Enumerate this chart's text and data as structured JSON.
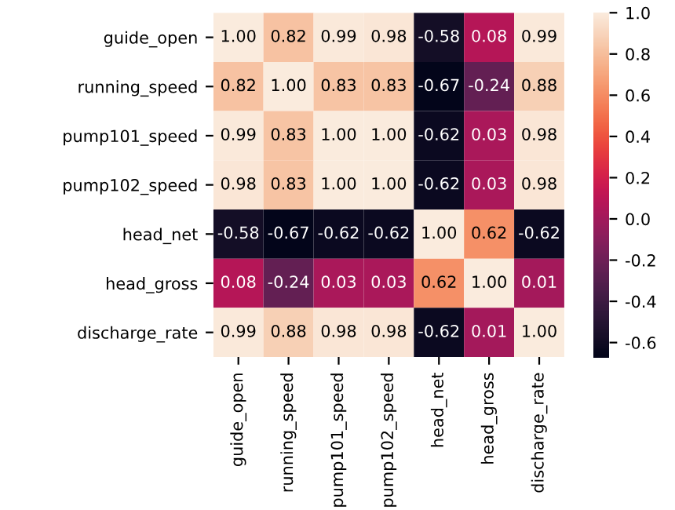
{
  "chart_data": {
    "type": "heatmap",
    "categories": [
      "guide_open",
      "running_speed",
      "pump101_speed",
      "pump102_speed",
      "head_net",
      "head_gross",
      "discharge_rate"
    ],
    "y_categories": [
      "guide_open",
      "running_speed",
      "pump101_speed",
      "pump102_speed",
      "head_net",
      "head_gross",
      "discharge_rate"
    ],
    "cells": [
      [
        1.0,
        0.82,
        0.99,
        0.98,
        -0.58,
        0.08,
        0.99
      ],
      [
        0.82,
        1.0,
        0.83,
        0.83,
        -0.67,
        -0.24,
        0.88
      ],
      [
        0.99,
        0.83,
        1.0,
        1.0,
        -0.62,
        0.03,
        0.98
      ],
      [
        0.98,
        0.83,
        1.0,
        1.0,
        -0.62,
        0.03,
        0.98
      ],
      [
        -0.58,
        -0.67,
        -0.62,
        -0.62,
        1.0,
        0.62,
        -0.62
      ],
      [
        0.08,
        -0.24,
        0.03,
        0.03,
        0.62,
        1.0,
        0.01
      ],
      [
        0.99,
        0.88,
        0.98,
        0.98,
        -0.62,
        0.01,
        1.0
      ]
    ],
    "cell_labels": [
      [
        "1.00",
        "0.82",
        "0.99",
        "0.98",
        "-0.58",
        "0.08",
        "0.99"
      ],
      [
        "0.82",
        "1.00",
        "0.83",
        "0.83",
        "-0.67",
        "-0.24",
        "0.88"
      ],
      [
        "0.99",
        "0.83",
        "1.00",
        "1.00",
        "-0.62",
        "0.03",
        "0.98"
      ],
      [
        "0.98",
        "0.83",
        "1.00",
        "1.00",
        "-0.62",
        "0.03",
        "0.98"
      ],
      [
        "-0.58",
        "-0.67",
        "-0.62",
        "-0.62",
        "1.00",
        "0.62",
        "-0.62"
      ],
      [
        "0.08",
        "-0.24",
        "0.03",
        "0.03",
        "0.62",
        "1.00",
        "0.01"
      ],
      [
        "0.99",
        "0.88",
        "0.98",
        "0.98",
        "-0.62",
        "0.01",
        "1.00"
      ]
    ],
    "clim": [
      -0.67,
      1.0
    ],
    "cticks": [
      -0.6,
      -0.4,
      -0.2,
      {
        "value": 0,
        "label": "0.0"
      },
      0.2,
      0.4,
      0.6,
      0.8,
      {
        "value": 1,
        "label": "1.0"
      }
    ]
  }
}
